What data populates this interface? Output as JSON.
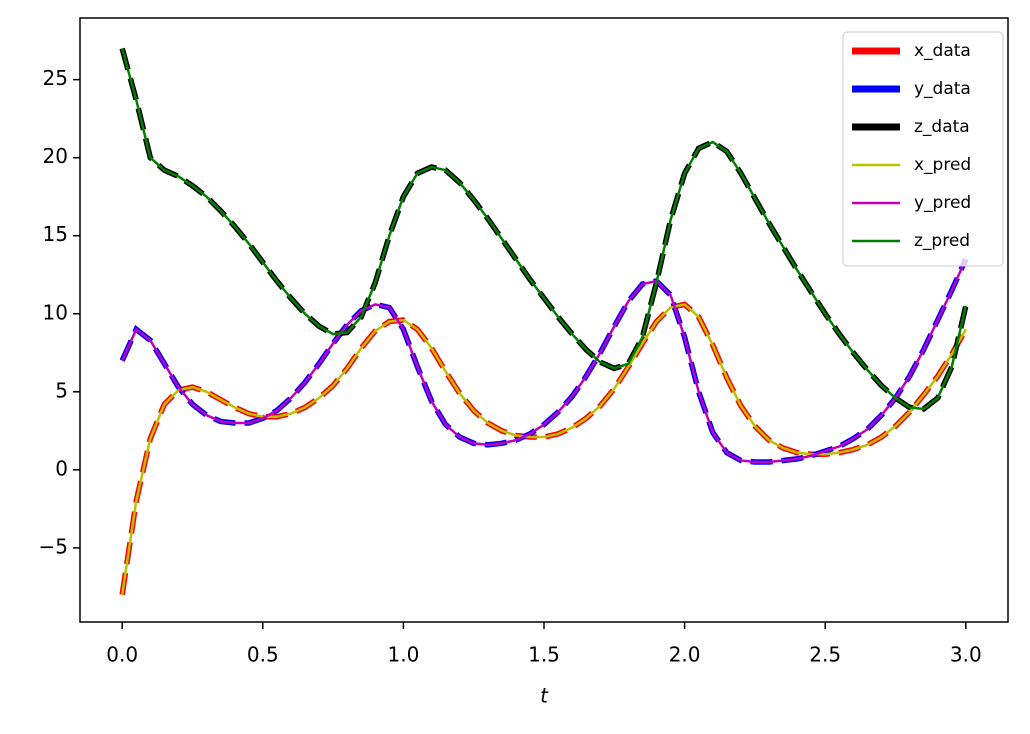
{
  "chart_data": {
    "type": "line",
    "xlabel": "t",
    "x": [
      0,
      0.05,
      0.1,
      0.15,
      0.2,
      0.25,
      0.3,
      0.35,
      0.4,
      0.45,
      0.5,
      0.55,
      0.6,
      0.65,
      0.7,
      0.75,
      0.8,
      0.85,
      0.9,
      0.95,
      1,
      1.05,
      1.1,
      1.15,
      1.2,
      1.25,
      1.3,
      1.35,
      1.4,
      1.45,
      1.5,
      1.55,
      1.6,
      1.65,
      1.7,
      1.75,
      1.8,
      1.85,
      1.9,
      1.95,
      2,
      2.05,
      2.1,
      2.15,
      2.2,
      2.25,
      2.3,
      2.35,
      2.4,
      2.45,
      2.5,
      2.55,
      2.6,
      2.65,
      2.7,
      2.75,
      2.8,
      2.85,
      2.9,
      2.95,
      3
    ],
    "series": [
      {
        "name": "x_data",
        "color": "#ff0000",
        "style": "dashed",
        "values": [
          -8,
          -2,
          2,
          4.2,
          5.1,
          5.3,
          5,
          4.5,
          4,
          3.6,
          3.4,
          3.4,
          3.6,
          4,
          4.6,
          5.4,
          6.5,
          7.8,
          8.9,
          9.5,
          9.6,
          9,
          7.8,
          6.3,
          4.9,
          3.8,
          3,
          2.5,
          2.2,
          2.1,
          2.1,
          2.3,
          2.7,
          3.3,
          4.1,
          5.2,
          6.6,
          8.1,
          9.5,
          10.4,
          10.6,
          9.8,
          8,
          5.9,
          4.1,
          2.8,
          1.9,
          1.4,
          1.1,
          1,
          1,
          1.1,
          1.3,
          1.6,
          2.1,
          2.8,
          3.7,
          4.8,
          6,
          7.4,
          9
        ]
      },
      {
        "name": "y_data",
        "color": "#0000ff",
        "style": "dashed",
        "values": [
          7,
          9,
          8.3,
          6.8,
          5.3,
          4.2,
          3.5,
          3.1,
          3,
          3,
          3.3,
          3.8,
          4.6,
          5.6,
          6.8,
          8.1,
          9.3,
          10.2,
          10.6,
          10.4,
          9,
          6.6,
          4.4,
          2.9,
          2.1,
          1.7,
          1.6,
          1.7,
          1.9,
          2.3,
          2.9,
          3.7,
          4.7,
          6,
          7.5,
          9.2,
          10.8,
          11.9,
          12.1,
          11.2,
          8.5,
          5,
          2.4,
          1.1,
          0.6,
          0.5,
          0.5,
          0.6,
          0.7,
          0.9,
          1.2,
          1.5,
          2,
          2.6,
          3.5,
          4.6,
          6,
          7.7,
          9.6,
          11.5,
          13.5
        ]
      },
      {
        "name": "z_data",
        "color": "#000000",
        "style": "dashed",
        "values": [
          27,
          23.7,
          20,
          19.2,
          18.8,
          18.2,
          17.5,
          16.6,
          15.6,
          14.5,
          13.3,
          12.1,
          11,
          10,
          9.2,
          8.7,
          8.8,
          9.8,
          12,
          15,
          17.5,
          19,
          19.4,
          19.2,
          18.4,
          17.3,
          16.1,
          14.8,
          13.5,
          12.2,
          11,
          9.8,
          8.7,
          7.7,
          6.9,
          6.5,
          6.8,
          8.5,
          12,
          16,
          19,
          20.6,
          21,
          20.4,
          19,
          17.4,
          15.8,
          14.3,
          12.8,
          11.4,
          10,
          8.7,
          7.5,
          6.4,
          5.4,
          4.6,
          4,
          3.9,
          4.6,
          6.6,
          10.5
        ]
      },
      {
        "name": "x_pred",
        "color": "#bfbf00",
        "style": "solid",
        "values": [
          -8,
          -2,
          2,
          4.2,
          5.1,
          5.3,
          5,
          4.5,
          4,
          3.6,
          3.4,
          3.4,
          3.6,
          4,
          4.6,
          5.4,
          6.5,
          7.8,
          8.9,
          9.5,
          9.6,
          9,
          7.8,
          6.3,
          4.9,
          3.8,
          3,
          2.5,
          2.2,
          2.1,
          2.1,
          2.3,
          2.7,
          3.3,
          4.1,
          5.2,
          6.6,
          8.1,
          9.5,
          10.4,
          10.6,
          9.8,
          8,
          5.9,
          4.1,
          2.8,
          1.9,
          1.4,
          1.1,
          1,
          1,
          1.1,
          1.3,
          1.6,
          2.1,
          2.8,
          3.7,
          4.8,
          6,
          7.4,
          9
        ]
      },
      {
        "name": "y_pred",
        "color": "#bf00bf",
        "style": "solid",
        "values": [
          7,
          9,
          8.3,
          6.8,
          5.3,
          4.2,
          3.5,
          3.1,
          3,
          3,
          3.3,
          3.8,
          4.6,
          5.6,
          6.8,
          8.1,
          9.3,
          10.2,
          10.6,
          10.4,
          9,
          6.6,
          4.4,
          2.9,
          2.1,
          1.7,
          1.6,
          1.7,
          1.9,
          2.3,
          2.9,
          3.7,
          4.7,
          6,
          7.5,
          9.2,
          10.8,
          11.9,
          12.1,
          11.2,
          8.5,
          5,
          2.4,
          1.1,
          0.6,
          0.5,
          0.5,
          0.6,
          0.7,
          0.9,
          1.2,
          1.5,
          2,
          2.6,
          3.5,
          4.6,
          6,
          7.7,
          9.6,
          11.5,
          13.5
        ]
      },
      {
        "name": "z_pred",
        "color": "#008000",
        "style": "solid",
        "values": [
          27,
          23.7,
          20,
          19.2,
          18.8,
          18.2,
          17.5,
          16.6,
          15.6,
          14.5,
          13.3,
          12.1,
          11,
          10,
          9.2,
          8.7,
          8.8,
          9.8,
          12,
          15,
          17.5,
          19,
          19.4,
          19.2,
          18.4,
          17.3,
          16.1,
          14.8,
          13.5,
          12.2,
          11,
          9.8,
          8.7,
          7.7,
          6.9,
          6.5,
          6.8,
          8.5,
          12,
          16,
          19,
          20.6,
          21,
          20.4,
          19,
          17.4,
          15.8,
          14.3,
          12.8,
          11.4,
          10,
          8.7,
          7.5,
          6.4,
          5.4,
          4.6,
          4,
          3.9,
          4.6,
          6.6,
          10.5
        ]
      }
    ],
    "xlim": [
      -0.15,
      3.15
    ],
    "ylim": [
      -9.75,
      28.95
    ],
    "xticks": [
      {
        "value": 0,
        "label": "0.0"
      },
      0.5,
      {
        "value": 1,
        "label": "1.0"
      },
      1.5,
      {
        "value": 2,
        "label": "2.0"
      },
      2.5,
      {
        "value": 3,
        "label": "3.0"
      }
    ],
    "yticks": [
      {
        "value": -5,
        "label": "−5"
      },
      0,
      5,
      10,
      15,
      20,
      25
    ],
    "legend": "upper right"
  }
}
